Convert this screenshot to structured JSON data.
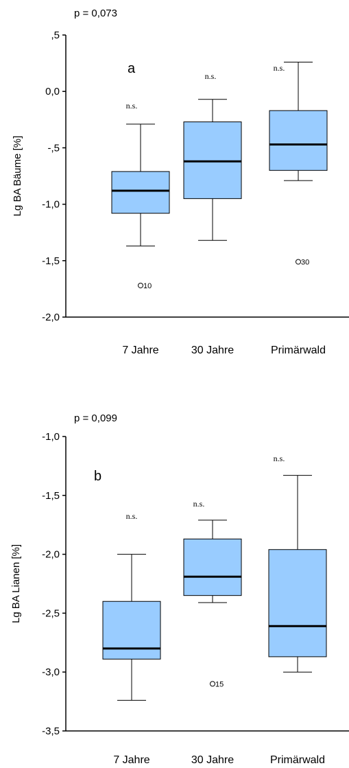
{
  "chart_data": [
    {
      "type": "box",
      "panel_label": "a",
      "p_value_text": "p = 0,073",
      "ylabel": "Lg BA Bäume [%]",
      "ylim": [
        -2.0,
        0.5
      ],
      "yticks": [
        0.5,
        0.0,
        -0.5,
        -1.0,
        -1.5,
        -2.0
      ],
      "ytick_labels": [
        ",5",
        "0,0",
        "-,5",
        "-1,0",
        "-1,5",
        "-2,0"
      ],
      "categories": [
        "7 Jahre",
        "30 Jahre",
        "Primärwald"
      ],
      "boxes": [
        {
          "whisker_low": -1.37,
          "q1": -1.08,
          "median": -0.88,
          "q3": -0.71,
          "whisker_high": -0.29,
          "annotation": "n.s.",
          "outliers": [
            {
              "value": -1.72,
              "label": "10"
            }
          ]
        },
        {
          "whisker_low": -1.32,
          "q1": -0.95,
          "median": -0.62,
          "q3": -0.27,
          "whisker_high": -0.07,
          "annotation": "n.s.",
          "outliers": []
        },
        {
          "whisker_low": -0.79,
          "q1": -0.7,
          "median": -0.47,
          "q3": -0.17,
          "whisker_high": 0.26,
          "annotation": "n.s.",
          "outliers": [
            {
              "value": -1.51,
              "label": "30"
            }
          ]
        }
      ],
      "box_color": "#99ccff",
      "grid": false
    },
    {
      "type": "box",
      "panel_label": "b",
      "p_value_text": "p = 0,099",
      "ylabel": "Lg BA Lianen [%]",
      "ylim": [
        -3.5,
        -1.0
      ],
      "yticks": [
        -1.0,
        -1.5,
        -2.0,
        -2.5,
        -3.0,
        -3.5
      ],
      "ytick_labels": [
        "-1,0",
        "-1,5",
        "-2,0",
        "-2,5",
        "-3,0",
        "-3,5"
      ],
      "categories": [
        "7 Jahre",
        "30 Jahre",
        "Primärwald"
      ],
      "boxes": [
        {
          "whisker_low": -3.24,
          "q1": -2.89,
          "median": -2.8,
          "q3": -2.4,
          "whisker_high": -2.0,
          "annotation": "n.s.",
          "outliers": []
        },
        {
          "whisker_low": -2.41,
          "q1": -2.35,
          "median": -2.19,
          "q3": -1.87,
          "whisker_high": -1.71,
          "annotation": "n.s.",
          "outliers": [
            {
              "value": -3.1,
              "label": "15"
            }
          ]
        },
        {
          "whisker_low": -3.0,
          "q1": -2.87,
          "median": -2.61,
          "q3": -1.96,
          "whisker_high": -1.33,
          "annotation": "n.s.",
          "outliers": []
        }
      ],
      "box_color": "#99ccff",
      "grid": false
    }
  ]
}
